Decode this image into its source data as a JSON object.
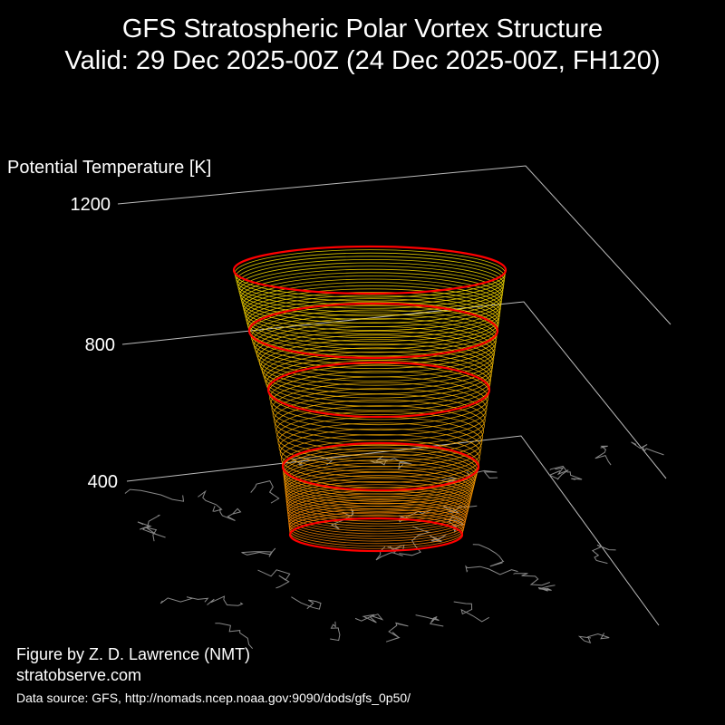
{
  "title": "GFS Stratospheric Polar Vortex Structure",
  "subtitle": "Valid: 29 Dec 2025-00Z  (24 Dec 2025-00Z, FH120)",
  "credit_author": "Figure by Z. D. Lawrence (NMT)",
  "credit_site": "stratobserve.com",
  "data_source": "Data source: GFS, http://nomads.ncep.noaa.gov:9090/dods/gfs_0p50/",
  "chart_data": {
    "type": "3d-isosurface",
    "zlabel": "Potential Temperature [K]",
    "zticks": [
      "1200",
      "800",
      "400"
    ],
    "grid": true,
    "colors": {
      "background": "#000000",
      "low_layers": "#ff8c00",
      "high_layers": "#ffee00",
      "edge_contours": "#ff0000",
      "coastlines": "#888888",
      "axes": "#bbbbbb"
    }
  }
}
